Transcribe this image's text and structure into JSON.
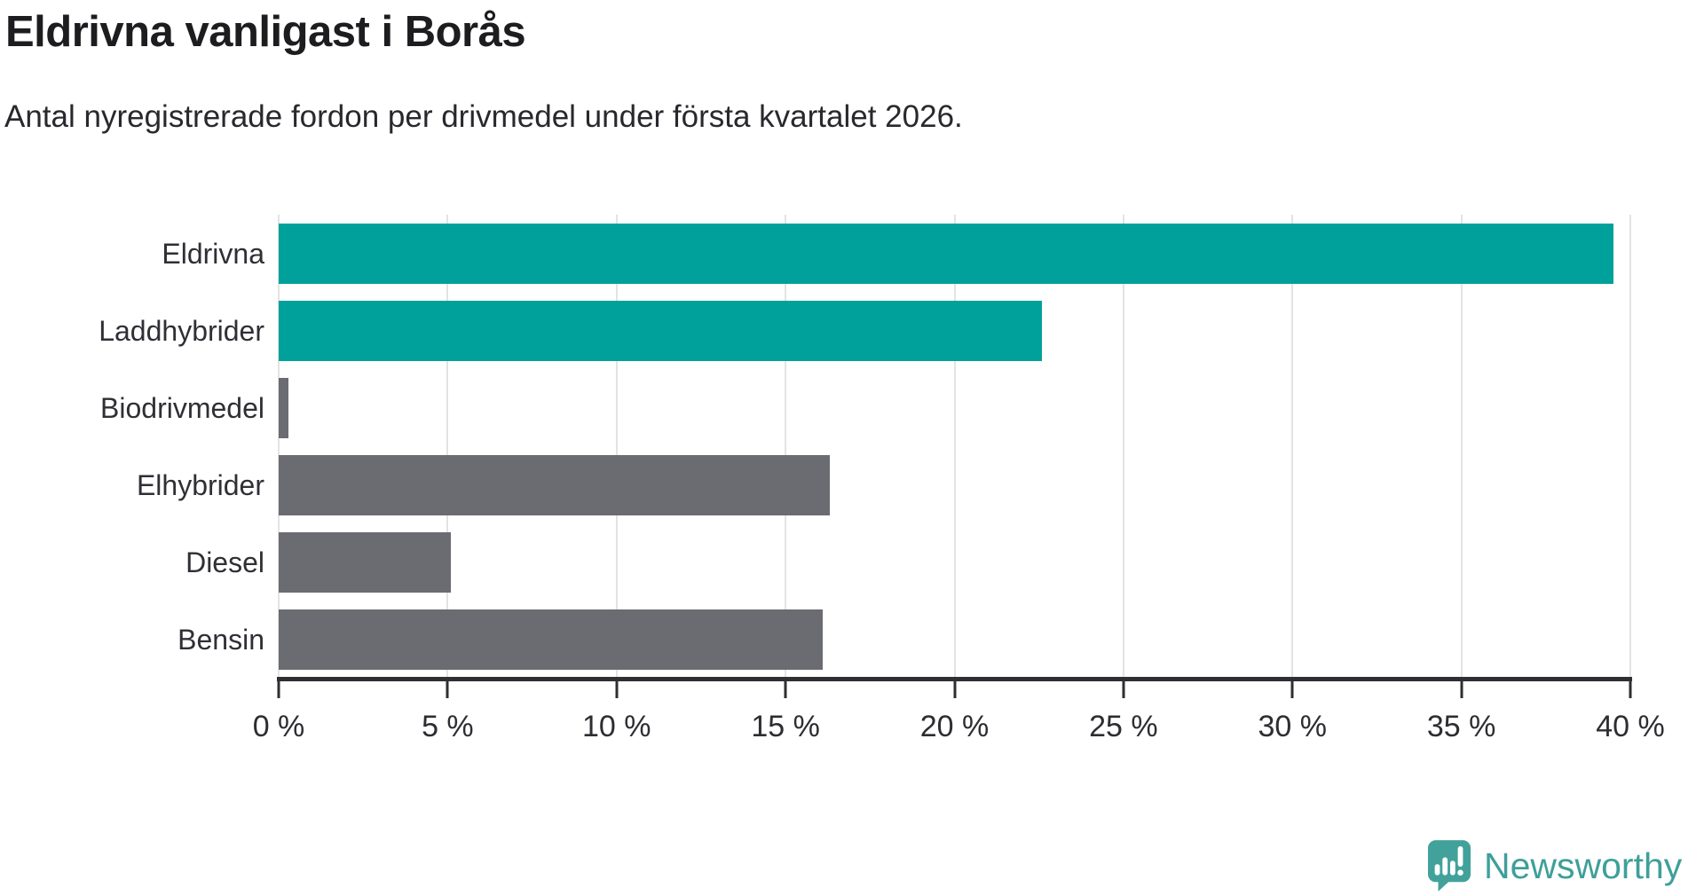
{
  "header": {
    "title": "Eldrivna vanligast i Borås",
    "subtitle": "Antal nyregistrerade fordon per drivmedel under första kvartalet 2026."
  },
  "chart_data": {
    "type": "bar",
    "orientation": "horizontal",
    "title": "Eldrivna vanligast i Borås",
    "subtitle": "Antal nyregistrerade fordon per drivmedel under första kvartalet 2026.",
    "categories": [
      "Eldrivna",
      "Laddhybrider",
      "Biodrivmedel",
      "Elhybrider",
      "Diesel",
      "Bensin"
    ],
    "values": [
      39.5,
      22.6,
      0.3,
      16.3,
      5.1,
      16.1
    ],
    "unit": "%",
    "bar_colors": [
      "#00a19a",
      "#00a19a",
      "#6b6b72",
      "#6b6b72",
      "#6b6b72",
      "#6b6b72"
    ],
    "xlabel": "",
    "ylabel": "",
    "xlim": [
      0,
      40
    ],
    "xticks": [
      0,
      5,
      10,
      15,
      20,
      25,
      30,
      35,
      40
    ],
    "xtick_labels": [
      "0 %",
      "5 %",
      "10 %",
      "15 %",
      "20 %",
      "25 %",
      "30 %",
      "35 %",
      "40 %"
    ],
    "grid": "vertical",
    "legend": "none"
  },
  "colors": {
    "accent_teal": "#00a19a",
    "neutral_gray": "#6b6b72",
    "axis": "#2e2e33",
    "gridline": "#e3e3e4",
    "title_text": "#1d1d20",
    "brand_teal": "#3f9f99"
  },
  "footer": {
    "brand": "Newsworthy",
    "logo_icon": "newsworthy-speech-bubble-chart-icon"
  }
}
